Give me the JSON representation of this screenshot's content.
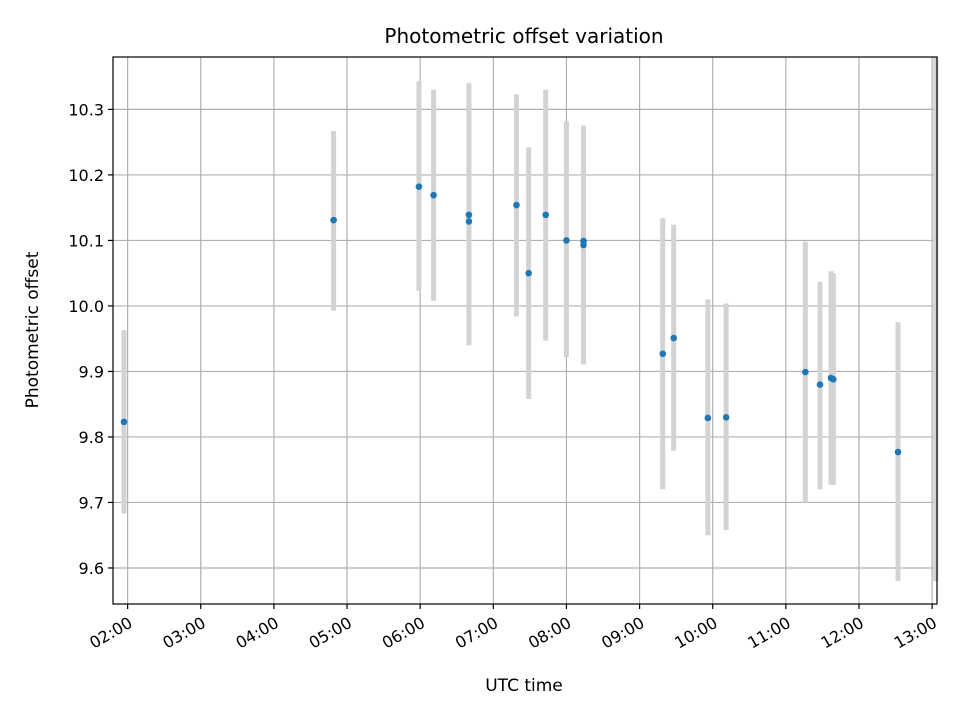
{
  "chart_data": {
    "type": "scatter",
    "title": "Photometric offset variation",
    "xlabel": "UTC time",
    "ylabel": "Photometric offset",
    "x_ticks": [
      "02:00",
      "03:00",
      "04:00",
      "05:00",
      "06:00",
      "07:00",
      "08:00",
      "09:00",
      "10:00",
      "11:00",
      "12:00",
      "13:00"
    ],
    "y_ticks": [
      "9.6",
      "9.7",
      "9.8",
      "9.9",
      "10.0",
      "10.1",
      "10.2",
      "10.3"
    ],
    "xlim": [
      "01:48",
      "13:04"
    ],
    "ylim": [
      9.545,
      10.38
    ],
    "grid": true,
    "point_color": "#1f77b4",
    "errorbar_color": "#d3d3d3",
    "points": [
      {
        "x": "01:57",
        "y": 9.823,
        "lo": 9.683,
        "hi": 9.963
      },
      {
        "x": "04:49",
        "y": 10.131,
        "lo": 9.993,
        "hi": 10.267
      },
      {
        "x": "05:59",
        "y": 10.182,
        "lo": 10.023,
        "hi": 10.343
      },
      {
        "x": "06:11",
        "y": 10.169,
        "lo": 10.008,
        "hi": 10.33
      },
      {
        "x": "06:40",
        "y": 10.139,
        "lo": 9.94,
        "hi": 10.34
      },
      {
        "x": "06:40",
        "y": 10.129,
        "lo": 9.94,
        "hi": 10.31
      },
      {
        "x": "07:19",
        "y": 10.154,
        "lo": 9.984,
        "hi": 10.323
      },
      {
        "x": "07:29",
        "y": 10.05,
        "lo": 9.858,
        "hi": 10.242
      },
      {
        "x": "07:43",
        "y": 10.139,
        "lo": 9.947,
        "hi": 10.33
      },
      {
        "x": "08:00",
        "y": 10.1,
        "lo": 9.922,
        "hi": 10.282
      },
      {
        "x": "08:14",
        "y": 10.099,
        "lo": 9.911,
        "hi": 10.275
      },
      {
        "x": "08:14",
        "y": 10.093,
        "lo": 9.911,
        "hi": 10.275
      },
      {
        "x": "09:19",
        "y": 9.927,
        "lo": 9.72,
        "hi": 10.134
      },
      {
        "x": "09:28",
        "y": 9.951,
        "lo": 9.779,
        "hi": 10.124
      },
      {
        "x": "09:56",
        "y": 9.829,
        "lo": 9.65,
        "hi": 10.01
      },
      {
        "x": "10:11",
        "y": 9.83,
        "lo": 9.658,
        "hi": 10.004
      },
      {
        "x": "11:16",
        "y": 9.899,
        "lo": 9.7,
        "hi": 10.098
      },
      {
        "x": "11:28",
        "y": 9.88,
        "lo": 9.72,
        "hi": 10.037
      },
      {
        "x": "11:37",
        "y": 9.89,
        "lo": 9.727,
        "hi": 10.053
      },
      {
        "x": "11:39",
        "y": 9.888,
        "lo": 9.727,
        "hi": 10.05
      },
      {
        "x": "12:32",
        "y": 9.777,
        "lo": 9.58,
        "hi": 9.975
      },
      {
        "x": "13:03",
        "y": null,
        "lo": 9.58,
        "hi": 10.38
      }
    ]
  }
}
